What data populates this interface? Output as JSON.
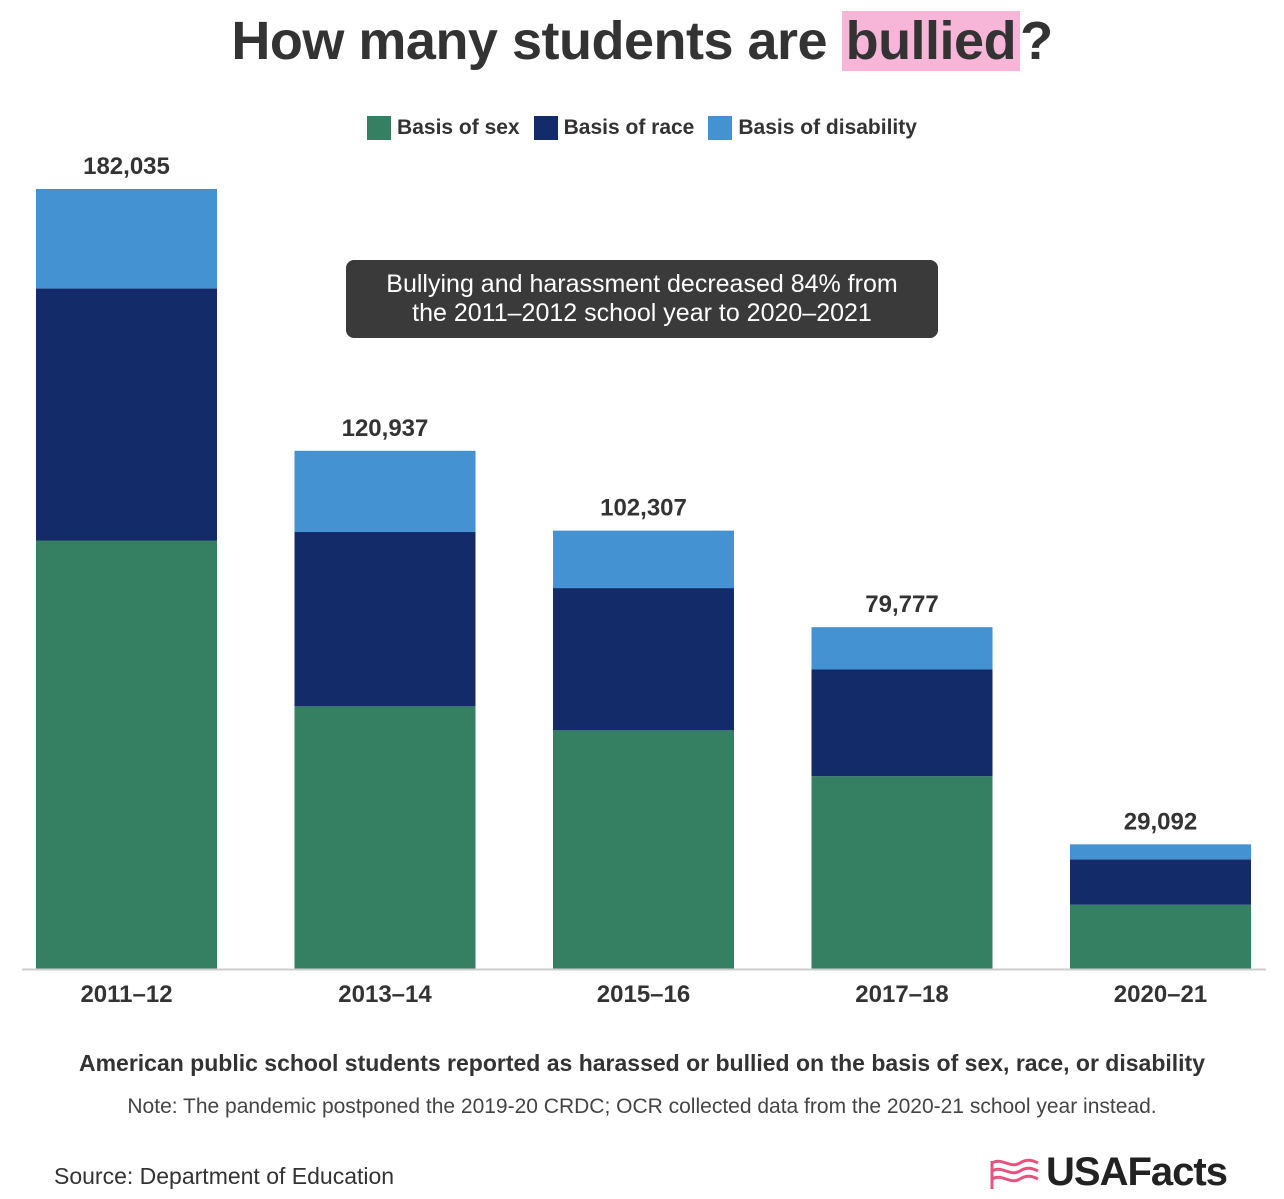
{
  "title": {
    "before": "How many students are ",
    "highlight": "bullied",
    "after": "?"
  },
  "callout": {
    "line1": "Bullying and harassment decreased 84% from",
    "line2": "the 2011–2012 school year to 2020–2021"
  },
  "subtitle": "American public school students reported as harassed or bullied on the basis of sex, race, or disability",
  "note": "Note: The pandemic postponed the 2019-20 CRDC; OCR collected data from the 2020-21 school year instead.",
  "source": "Source: Department of Education",
  "logo_text": "USAFacts",
  "colors": {
    "sex": "#358062",
    "race": "#142b69",
    "disability": "#4592d3",
    "highlight": "#f7b6d8",
    "callout_bg": "#3a3a3a"
  },
  "chart_data": {
    "type": "bar",
    "stacked": true,
    "categories": [
      "2011–12",
      "2013–14",
      "2015–16",
      "2017–18",
      "2020–21"
    ],
    "series": [
      {
        "name": "Basis of sex",
        "color": "#358062",
        "values": [
          100000,
          61300,
          55700,
          45000,
          15000
        ]
      },
      {
        "name": "Basis of race",
        "color": "#142b69",
        "values": [
          58800,
          40700,
          33200,
          24900,
          10600
        ]
      },
      {
        "name": "Basis of disability",
        "color": "#4592d3",
        "values": [
          23235,
          18937,
          13407,
          9877,
          3492
        ]
      }
    ],
    "totals": [
      182035,
      120937,
      102307,
      79777,
      29092
    ],
    "total_labels": [
      "182,035",
      "120,937",
      "102,307",
      "79,777",
      "29,092"
    ],
    "ylim": [
      0,
      182035
    ],
    "grid": false,
    "legend_position": "top-center"
  }
}
